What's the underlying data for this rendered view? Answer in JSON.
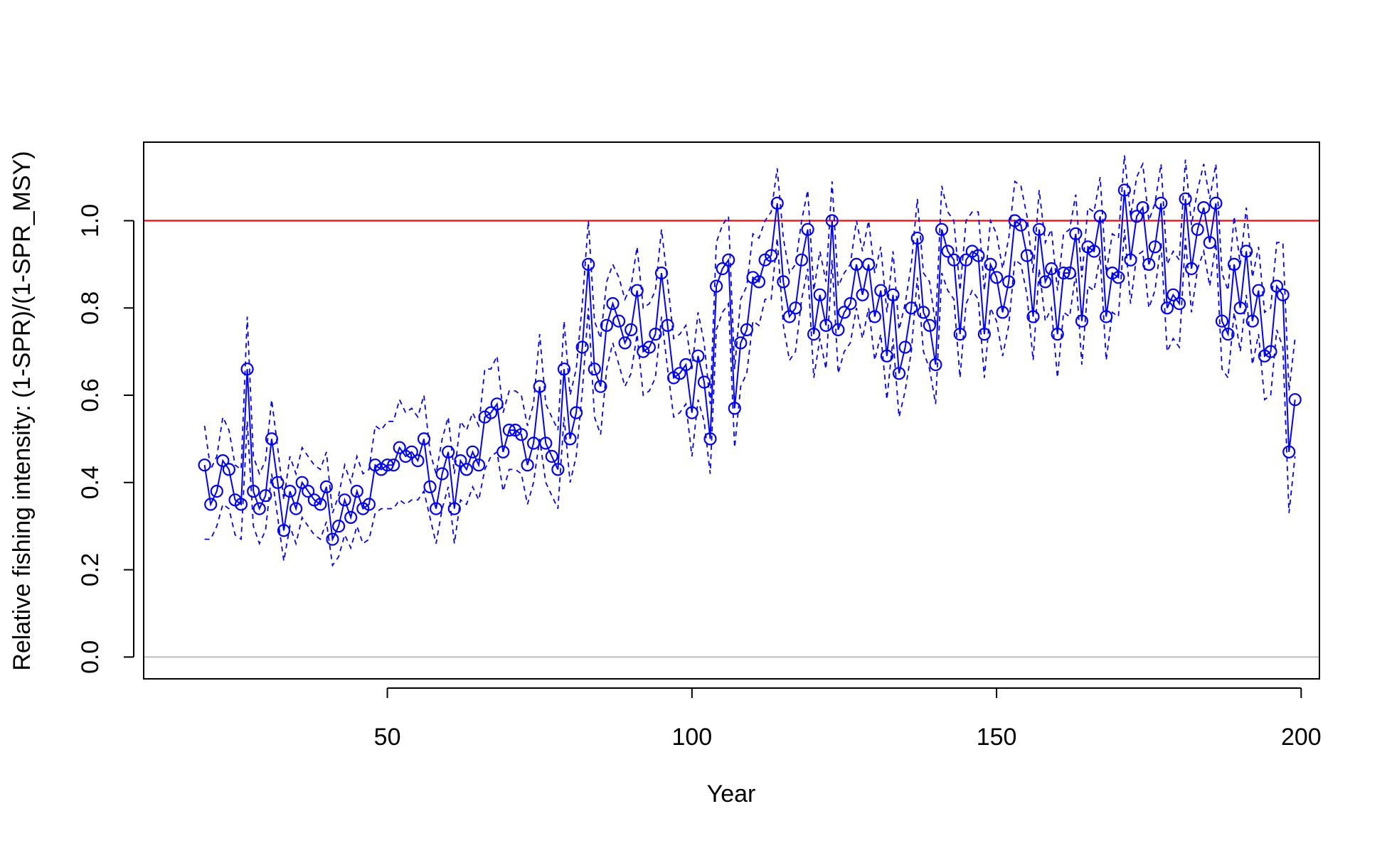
{
  "chart_data": {
    "type": "line",
    "title": "",
    "xlabel": "Year",
    "ylabel": "Relative fishing intensity: (1-SPR)/(1-SPR_MSY)",
    "xlim": [
      10,
      203
    ],
    "ylim": [
      -0.05,
      1.18
    ],
    "x_ticks": [
      50,
      100,
      150,
      200
    ],
    "y_ticks": [
      0.0,
      0.2,
      0.4,
      0.6,
      0.8,
      1.0
    ],
    "x_tick_labels": [
      "50",
      "100",
      "150",
      "200"
    ],
    "y_tick_labels": [
      "0.0",
      "0.2",
      "0.4",
      "0.6",
      "0.8",
      "1.0"
    ],
    "grid": false,
    "reference_lines": [
      {
        "y": 1.0,
        "color": "#ff0000"
      },
      {
        "y": 0.0,
        "color": "#bebebe"
      }
    ],
    "series_color": "#0000ff",
    "interval_style": "dashed",
    "x_start": 20,
    "values": [
      0.44,
      0.35,
      0.38,
      0.45,
      0.43,
      0.36,
      0.35,
      0.66,
      0.38,
      0.34,
      0.37,
      0.5,
      0.4,
      0.29,
      0.38,
      0.34,
      0.4,
      0.38,
      0.36,
      0.35,
      0.39,
      0.27,
      0.3,
      0.36,
      0.32,
      0.38,
      0.34,
      0.35,
      0.44,
      0.43,
      0.44,
      0.44,
      0.48,
      0.46,
      0.47,
      0.45,
      0.5,
      0.39,
      0.34,
      0.42,
      0.47,
      0.34,
      0.45,
      0.43,
      0.47,
      0.44,
      0.55,
      0.56,
      0.58,
      0.47,
      0.52,
      0.52,
      0.51,
      0.44,
      0.49,
      0.62,
      0.49,
      0.46,
      0.43,
      0.66,
      0.5,
      0.56,
      0.71,
      0.9,
      0.66,
      0.62,
      0.76,
      0.81,
      0.77,
      0.72,
      0.75,
      0.84,
      0.7,
      0.71,
      0.74,
      0.88,
      0.76,
      0.64,
      0.65,
      0.67,
      0.56,
      0.69,
      0.63,
      0.5,
      0.85,
      0.89,
      0.91,
      0.57,
      0.72,
      0.75,
      0.87,
      0.86,
      0.91,
      0.92,
      1.04,
      0.86,
      0.78,
      0.8,
      0.91,
      0.98,
      0.74,
      0.83,
      0.76,
      1.0,
      0.75,
      0.79,
      0.81,
      0.9,
      0.83,
      0.9,
      0.78,
      0.84,
      0.69,
      0.83,
      0.65,
      0.71,
      0.8,
      0.96,
      0.79,
      0.76,
      0.67,
      0.98,
      0.93,
      0.91,
      0.74,
      0.91,
      0.93,
      0.92,
      0.74,
      0.9,
      0.87,
      0.79,
      0.86,
      1.0,
      0.99,
      0.92,
      0.78,
      0.98,
      0.86,
      0.89,
      0.74,
      0.88,
      0.88,
      0.97,
      0.77,
      0.94,
      0.93,
      1.01,
      0.78,
      0.88,
      0.87,
      1.07,
      0.91,
      1.01,
      1.03,
      0.9,
      0.94,
      1.04,
      0.8,
      0.83,
      0.81,
      1.05,
      0.89,
      0.98,
      1.03,
      0.95,
      1.04,
      0.77,
      0.74,
      0.9,
      0.8,
      0.93,
      0.77,
      0.84,
      0.69,
      0.7,
      0.85,
      0.83,
      0.47,
      0.59
    ],
    "lower": [
      0.27,
      0.27,
      0.3,
      0.35,
      0.34,
      0.28,
      0.27,
      0.54,
      0.3,
      0.26,
      0.29,
      0.42,
      0.32,
      0.22,
      0.3,
      0.26,
      0.32,
      0.3,
      0.28,
      0.27,
      0.31,
      0.21,
      0.23,
      0.28,
      0.25,
      0.3,
      0.26,
      0.27,
      0.33,
      0.34,
      0.34,
      0.34,
      0.36,
      0.35,
      0.36,
      0.36,
      0.38,
      0.32,
      0.26,
      0.34,
      0.39,
      0.26,
      0.36,
      0.35,
      0.39,
      0.36,
      0.43,
      0.46,
      0.47,
      0.38,
      0.43,
      0.43,
      0.42,
      0.35,
      0.4,
      0.5,
      0.4,
      0.37,
      0.34,
      0.55,
      0.4,
      0.46,
      0.61,
      0.8,
      0.55,
      0.51,
      0.66,
      0.72,
      0.67,
      0.62,
      0.65,
      0.74,
      0.6,
      0.61,
      0.64,
      0.78,
      0.66,
      0.55,
      0.56,
      0.58,
      0.46,
      0.59,
      0.54,
      0.42,
      0.75,
      0.79,
      0.81,
      0.48,
      0.62,
      0.65,
      0.77,
      0.76,
      0.82,
      0.82,
      0.96,
      0.76,
      0.68,
      0.7,
      0.82,
      0.89,
      0.64,
      0.73,
      0.66,
      0.91,
      0.65,
      0.7,
      0.72,
      0.8,
      0.73,
      0.8,
      0.68,
      0.74,
      0.59,
      0.73,
      0.55,
      0.61,
      0.7,
      0.87,
      0.7,
      0.66,
      0.58,
      0.88,
      0.84,
      0.82,
      0.64,
      0.81,
      0.84,
      0.82,
      0.64,
      0.8,
      0.77,
      0.69,
      0.76,
      0.91,
      0.9,
      0.83,
      0.68,
      0.89,
      0.77,
      0.8,
      0.64,
      0.79,
      0.78,
      0.88,
      0.67,
      0.85,
      0.84,
      0.92,
      0.68,
      0.79,
      0.78,
      0.98,
      0.81,
      0.92,
      0.93,
      0.8,
      0.84,
      0.95,
      0.7,
      0.73,
      0.71,
      0.96,
      0.79,
      0.89,
      0.93,
      0.85,
      0.95,
      0.66,
      0.64,
      0.79,
      0.7,
      0.83,
      0.67,
      0.74,
      0.59,
      0.6,
      0.75,
      0.71,
      0.33,
      0.46
    ],
    "upper": [
      0.53,
      0.43,
      0.46,
      0.55,
      0.52,
      0.44,
      0.43,
      0.78,
      0.46,
      0.42,
      0.45,
      0.59,
      0.48,
      0.36,
      0.46,
      0.42,
      0.48,
      0.46,
      0.44,
      0.43,
      0.47,
      0.33,
      0.37,
      0.44,
      0.4,
      0.46,
      0.42,
      0.43,
      0.53,
      0.52,
      0.54,
      0.54,
      0.59,
      0.56,
      0.57,
      0.55,
      0.6,
      0.47,
      0.42,
      0.5,
      0.55,
      0.42,
      0.54,
      0.52,
      0.56,
      0.53,
      0.66,
      0.66,
      0.69,
      0.56,
      0.61,
      0.61,
      0.6,
      0.53,
      0.58,
      0.74,
      0.58,
      0.55,
      0.52,
      0.77,
      0.6,
      0.66,
      0.81,
      1.0,
      0.77,
      0.73,
      0.86,
      0.9,
      0.87,
      0.82,
      0.85,
      0.94,
      0.8,
      0.81,
      0.84,
      0.98,
      0.86,
      0.73,
      0.74,
      0.76,
      0.66,
      0.79,
      0.72,
      0.58,
      0.95,
      0.99,
      1.01,
      0.66,
      0.82,
      0.85,
      0.97,
      0.96,
      1.0,
      1.02,
      1.12,
      0.96,
      0.88,
      0.9,
      1.0,
      1.07,
      0.84,
      0.93,
      0.86,
      1.09,
      0.85,
      0.88,
      0.9,
      1.0,
      0.93,
      1.0,
      0.88,
      0.94,
      0.79,
      0.93,
      0.75,
      0.81,
      0.9,
      1.05,
      0.88,
      0.86,
      0.76,
      1.08,
      1.02,
      1.0,
      0.84,
      1.0,
      1.02,
      1.02,
      0.84,
      1.0,
      0.97,
      0.89,
      0.96,
      1.09,
      1.08,
      1.01,
      0.88,
      1.07,
      0.95,
      0.98,
      0.84,
      0.97,
      0.98,
      1.06,
      0.87,
      1.03,
      1.02,
      1.1,
      0.88,
      0.97,
      0.96,
      1.15,
      1.01,
      1.1,
      1.13,
      1.0,
      1.04,
      1.13,
      0.9,
      0.93,
      0.91,
      1.14,
      0.99,
      1.07,
      1.13,
      1.05,
      1.13,
      0.88,
      0.84,
      1.01,
      0.9,
      1.03,
      0.87,
      0.94,
      0.79,
      0.8,
      0.95,
      0.95,
      0.61,
      0.73
    ]
  }
}
